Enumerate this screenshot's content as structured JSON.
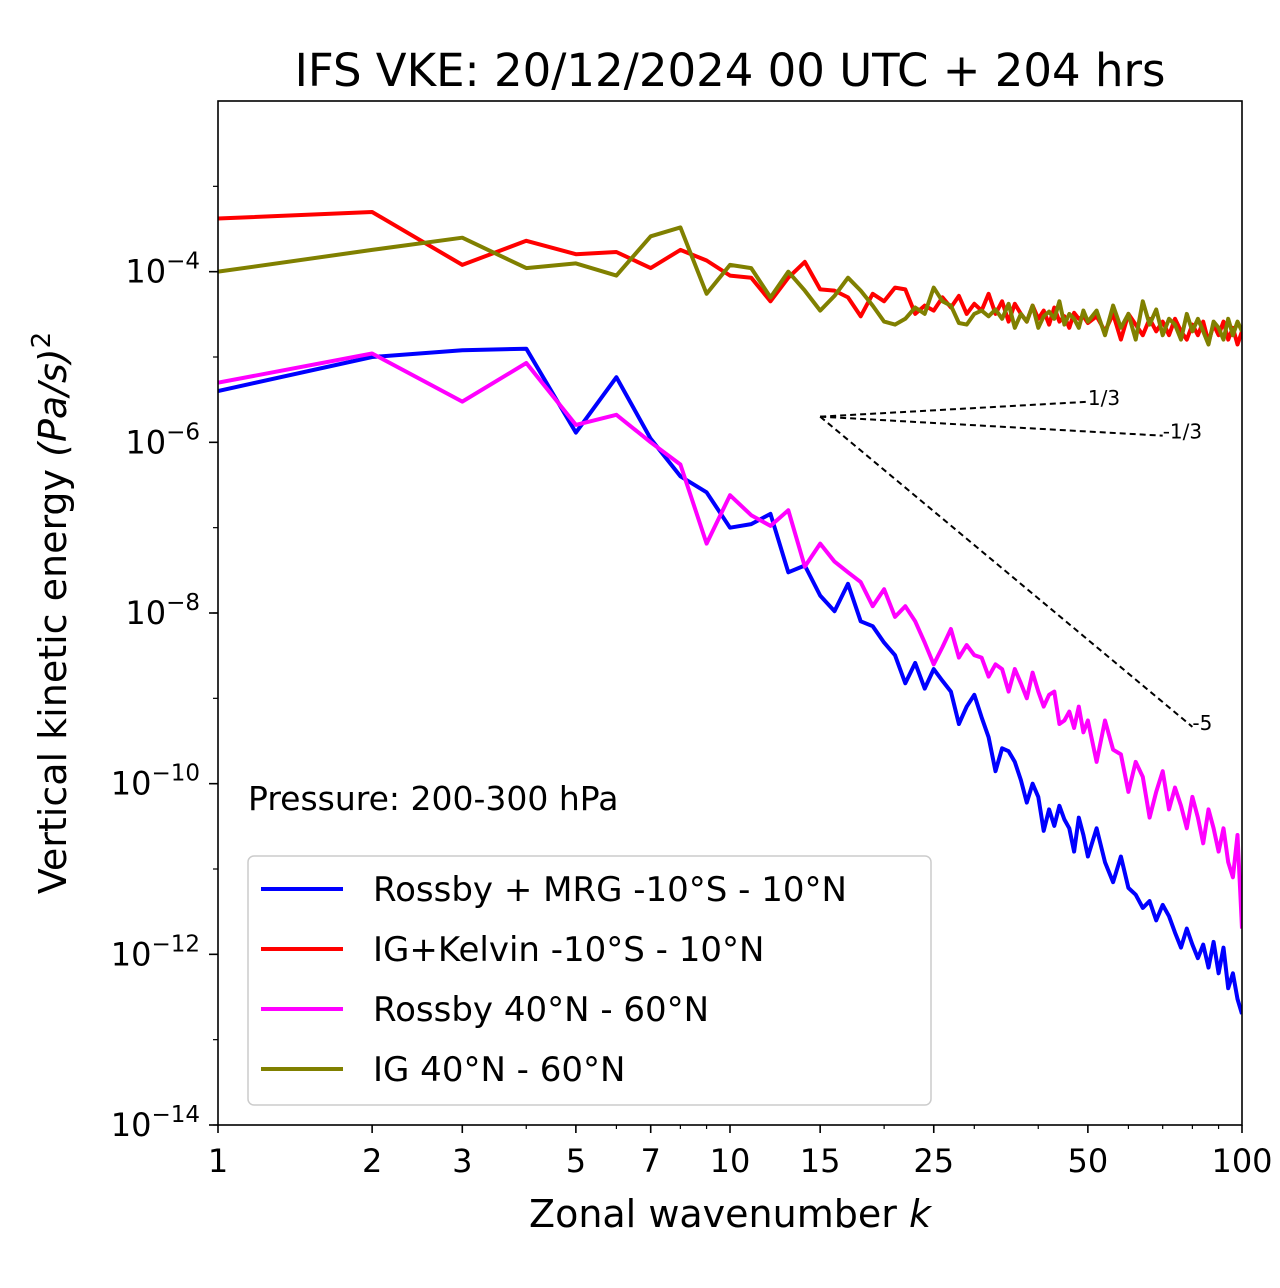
{
  "chart_data": {
    "type": "line",
    "title": "IFS VKE: 20/12/2024 00 UTC + 204 hrs",
    "xlabel": "Zonal wavenumber",
    "xlabel_var": "k",
    "ylabel": "Vertical kinetic energy",
    "ylabel_unit": "(Pa/s)",
    "ylabel_exp": "2",
    "xscale": "log",
    "yscale": "log",
    "xlim": [
      1,
      100
    ],
    "ylim": [
      1e-14,
      0.01
    ],
    "xticks": [
      1,
      2,
      3,
      5,
      7,
      10,
      15,
      25,
      50,
      100
    ],
    "xtick_labels": [
      "1",
      "2",
      "3",
      "5",
      "7",
      "10",
      "15",
      "25",
      "50",
      "100"
    ],
    "yticks": [
      1e-14,
      1e-12,
      1e-10,
      1e-08,
      1e-06,
      0.0001
    ],
    "ytick_base": "10",
    "ytick_exponents": [
      "−14",
      "−12",
      "−10",
      "−8",
      "−6",
      "−4"
    ],
    "annotation": "Pressure: 200-300 hPa",
    "legend_position": "lower-left",
    "series": [
      {
        "name": "Rossby + MRG -10°S - 10°N",
        "color": "#0000ff",
        "x": [
          1,
          2,
          3,
          4,
          5,
          6,
          7,
          8,
          9,
          10,
          11,
          12,
          13,
          14,
          15,
          16,
          17,
          18,
          19,
          20,
          21,
          22,
          23,
          24,
          25,
          26,
          27,
          28,
          29,
          30,
          31,
          32,
          33,
          34,
          35,
          36,
          37,
          38,
          39,
          40,
          41,
          42,
          43,
          44,
          45,
          46,
          47,
          48,
          49,
          50,
          52,
          54,
          56,
          58,
          60,
          62,
          64,
          66,
          68,
          70,
          72,
          74,
          76,
          78,
          80,
          82,
          84,
          86,
          88,
          90,
          92,
          94,
          96,
          98,
          100
        ],
        "y": [
          4e-06,
          1e-05,
          1.2e-05,
          1.25e-05,
          1.3e-06,
          5.8e-06,
          1.1e-06,
          4e-07,
          2.6e-07,
          1e-07,
          1.1e-07,
          1.45e-07,
          3e-08,
          3.6e-08,
          1.6e-08,
          1.05e-08,
          2.2e-08,
          8e-09,
          7e-09,
          4.5e-09,
          3.2e-09,
          1.5e-09,
          2.6e-09,
          1.3e-09,
          2.2e-09,
          1.6e-09,
          1.2e-09,
          5e-10,
          8e-10,
          1.1e-09,
          6e-10,
          3.5e-10,
          1.4e-10,
          2.6e-10,
          2.4e-10,
          1.8e-10,
          1.1e-10,
          6e-11,
          1e-10,
          7e-11,
          2.8e-11,
          5e-11,
          3.2e-11,
          5.5e-11,
          3.8e-11,
          3e-11,
          1.6e-11,
          4e-11,
          2.5e-11,
          1.4e-11,
          3e-11,
          1.2e-11,
          7e-12,
          1.4e-11,
          6e-12,
          5e-12,
          3.5e-12,
          4.2e-12,
          2.5e-12,
          3.8e-12,
          2.8e-12,
          1.8e-12,
          1.2e-12,
          2e-12,
          1.3e-12,
          9e-13,
          1.3e-12,
          7e-13,
          1.4e-12,
          6e-13,
          1.2e-12,
          4e-13,
          6e-13,
          3e-13,
          2e-13
        ]
      },
      {
        "name": "IG+Kelvin -10°S - 10°N",
        "color": "#ff0000",
        "x": [
          1,
          2,
          3,
          4,
          5,
          6,
          7,
          8,
          9,
          10,
          11,
          12,
          13,
          14,
          15,
          16,
          17,
          18,
          19,
          20,
          21,
          22,
          23,
          24,
          25,
          26,
          27,
          28,
          29,
          30,
          31,
          32,
          33,
          34,
          35,
          36,
          37,
          38,
          39,
          40,
          41,
          42,
          43,
          44,
          45,
          46,
          47,
          48,
          49,
          50,
          52,
          54,
          56,
          58,
          60,
          62,
          64,
          66,
          68,
          70,
          72,
          74,
          76,
          78,
          80,
          82,
          84,
          86,
          88,
          90,
          92,
          94,
          96,
          98,
          100
        ],
        "y": [
          0.00042,
          0.0005,
          0.00012,
          0.00023,
          0.00016,
          0.00017,
          0.00011,
          0.00018,
          0.000135,
          9e-05,
          8.5e-05,
          4.5e-05,
          8.5e-05,
          0.00013,
          6.2e-05,
          6e-05,
          5e-05,
          3e-05,
          5.5e-05,
          4.5e-05,
          6.5e-05,
          6.2e-05,
          3.2e-05,
          4e-05,
          3.5e-05,
          5e-05,
          3.8e-05,
          5.2e-05,
          3.2e-05,
          4.2e-05,
          3.5e-05,
          5.5e-05,
          3.2e-05,
          4.5e-05,
          2.6e-05,
          4.2e-05,
          3.2e-05,
          2.6e-05,
          4e-05,
          2.8e-05,
          3.5e-05,
          2.4e-05,
          3.8e-05,
          2.6e-05,
          3e-05,
          2.2e-05,
          3.3e-05,
          2.8e-05,
          3e-05,
          2.5e-05,
          3e-05,
          2e-05,
          3.2e-05,
          1.6e-05,
          3.2e-05,
          2.4e-05,
          1.8e-05,
          2.8e-05,
          2e-05,
          2.6e-05,
          1.8e-05,
          2.8e-05,
          2e-05,
          1.6e-05,
          2.4e-05,
          1.8e-05,
          2.6e-05,
          1.5e-05,
          2.4e-05,
          1.8e-05,
          2.6e-05,
          1.6e-05,
          2.2e-05,
          1.4e-05,
          2e-05
        ]
      },
      {
        "name": "Rossby 40°N - 60°N",
        "color": "#ff00ff",
        "x": [
          1,
          2,
          3,
          4,
          5,
          6,
          7,
          8,
          9,
          10,
          11,
          12,
          13,
          14,
          15,
          16,
          17,
          18,
          19,
          20,
          21,
          22,
          23,
          24,
          25,
          26,
          27,
          28,
          29,
          30,
          31,
          32,
          33,
          34,
          35,
          36,
          37,
          38,
          39,
          40,
          41,
          42,
          43,
          44,
          45,
          46,
          47,
          48,
          49,
          50,
          52,
          54,
          56,
          58,
          60,
          62,
          64,
          66,
          68,
          70,
          72,
          74,
          76,
          78,
          80,
          82,
          84,
          86,
          88,
          90,
          92,
          94,
          96,
          98,
          100
        ],
        "y": [
          5e-06,
          1.1e-05,
          3e-06,
          8.5e-06,
          1.6e-06,
          2.1e-06,
          1e-06,
          5.5e-07,
          6.5e-08,
          2.4e-07,
          1.4e-07,
          1.05e-07,
          1.6e-07,
          3.5e-08,
          6.5e-08,
          4e-08,
          3e-08,
          2.3e-08,
          1.2e-08,
          1.9e-08,
          9e-09,
          1.2e-08,
          8e-09,
          4.5e-09,
          2.5e-09,
          4e-09,
          6.5e-09,
          3e-09,
          4.2e-09,
          3.2e-09,
          3e-09,
          1.8e-09,
          2.5e-09,
          2.2e-09,
          1.2e-09,
          2.2e-09,
          1.5e-09,
          1e-09,
          2e-09,
          1.2e-09,
          8e-10,
          1.1e-09,
          1.2e-09,
          5e-10,
          5.5e-10,
          7e-10,
          4.5e-10,
          8e-10,
          4e-10,
          5.5e-10,
          1.8e-10,
          5.5e-10,
          2.5e-10,
          2.2e-10,
          8e-11,
          1.8e-10,
          1.2e-10,
          4e-11,
          8e-11,
          1.4e-10,
          5e-11,
          9e-11,
          5.5e-11,
          3e-11,
          7e-11,
          4e-11,
          2e-11,
          5e-11,
          3e-11,
          1.6e-11,
          3e-11,
          1.2e-11,
          8e-12,
          2.5e-11,
          2e-12
        ]
      },
      {
        "name": "IG 40°N - 60°N",
        "color": "#808000",
        "x": [
          1,
          2,
          3,
          4,
          5,
          6,
          7,
          8,
          9,
          10,
          11,
          12,
          13,
          14,
          15,
          16,
          17,
          18,
          19,
          20,
          21,
          22,
          23,
          24,
          25,
          26,
          27,
          28,
          29,
          30,
          31,
          32,
          33,
          34,
          35,
          36,
          37,
          38,
          39,
          40,
          41,
          42,
          43,
          44,
          45,
          46,
          47,
          48,
          49,
          50,
          52,
          54,
          56,
          58,
          60,
          62,
          64,
          66,
          68,
          70,
          72,
          74,
          76,
          78,
          80,
          82,
          84,
          86,
          88,
          90,
          92,
          94,
          96,
          98,
          100
        ],
        "y": [
          0.0001,
          0.00018,
          0.00025,
          0.00011,
          0.000125,
          9e-05,
          0.00026,
          0.00033,
          5.5e-05,
          0.00012,
          0.00011,
          5e-05,
          0.0001,
          6e-05,
          3.5e-05,
          5.2e-05,
          8.5e-05,
          6e-05,
          4e-05,
          2.6e-05,
          2.4e-05,
          2.8e-05,
          3.8e-05,
          3.2e-05,
          6.5e-05,
          4.5e-05,
          4e-05,
          2.5e-05,
          2.4e-05,
          3.2e-05,
          3.5e-05,
          3e-05,
          3.6e-05,
          2.8e-05,
          4.2e-05,
          2.2e-05,
          3.2e-05,
          2.6e-05,
          4e-05,
          2.2e-05,
          3e-05,
          3.4e-05,
          2.8e-05,
          4.5e-05,
          2.4e-05,
          3.2e-05,
          2.8e-05,
          2.2e-05,
          3.5e-05,
          2.6e-05,
          3.5e-05,
          1.8e-05,
          4e-05,
          2.2e-05,
          3.2e-05,
          1.6e-05,
          4.5e-05,
          2.4e-05,
          3.6e-05,
          1.8e-05,
          2.8e-05,
          2.4e-05,
          1.6e-05,
          3.2e-05,
          2e-05,
          2.8e-05,
          2e-05,
          1.4e-05,
          2.6e-05,
          2.2e-05,
          1.6e-05,
          2.8e-05,
          1.8e-05,
          2.6e-05,
          2e-05
        ]
      }
    ],
    "reference_lines": [
      {
        "label": "1/3",
        "slope": 0.3333,
        "x": [
          15,
          50
        ],
        "y0": 2e-06
      },
      {
        "label": "-1/3",
        "slope": -0.3333,
        "x": [
          15,
          70
        ],
        "y0": 2e-06
      },
      {
        "label": "-5",
        "slope": -5,
        "x": [
          15,
          80
        ],
        "y0": 2e-06
      }
    ]
  }
}
